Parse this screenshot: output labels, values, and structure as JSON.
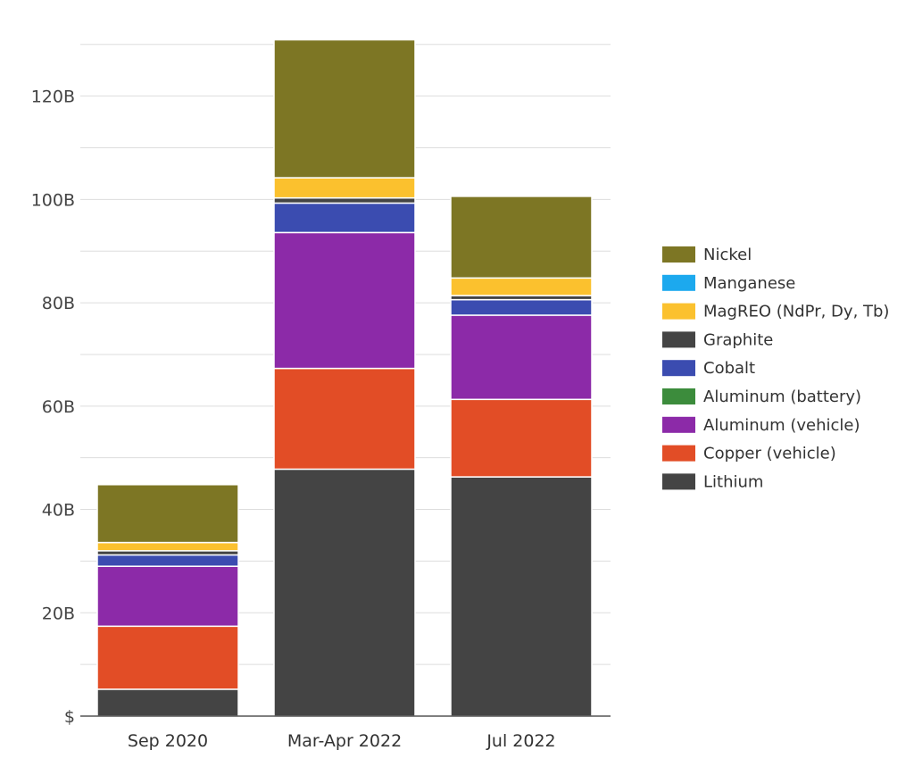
{
  "chart_data": {
    "type": "bar",
    "stacked": true,
    "title": "",
    "xlabel": "",
    "ylabel": "",
    "ylim": [
      0,
      131
    ],
    "y_ticks": [
      {
        "value": 0,
        "label": "$"
      },
      {
        "value": 20,
        "label": "20B"
      },
      {
        "value": 40,
        "label": "40B"
      },
      {
        "value": 60,
        "label": "60B"
      },
      {
        "value": 80,
        "label": "80B"
      },
      {
        "value": 100,
        "label": "100B"
      },
      {
        "value": 120,
        "label": "120B"
      }
    ],
    "minor_gridlines": [
      10,
      30,
      50,
      70,
      90,
      110,
      130
    ],
    "grid": true,
    "legend_position": "right",
    "categories": [
      "Sep 2020",
      "Mar-Apr 2022",
      "Jul 2022"
    ],
    "series": [
      {
        "name": "Lithium",
        "color": "#444444",
        "values": [
          5.2,
          47.8,
          46.3
        ]
      },
      {
        "name": "Copper (vehicle)",
        "color": "#e24d26",
        "values": [
          12.2,
          19.5,
          15.0
        ]
      },
      {
        "name": "Aluminum (vehicle)",
        "color": "#8c2aa8",
        "values": [
          11.6,
          26.3,
          16.3
        ]
      },
      {
        "name": "Aluminum (battery)",
        "color": "#3c8c3c",
        "values": [
          0,
          0,
          0
        ]
      },
      {
        "name": "Cobalt",
        "color": "#3b4cb0",
        "values": [
          2.2,
          5.7,
          3.0
        ]
      },
      {
        "name": "Graphite",
        "color": "#444444",
        "values": [
          0.8,
          1.0,
          0.8
        ]
      },
      {
        "name": "MagREO (NdPr, Dy, Tb)",
        "color": "#fbc12e",
        "values": [
          1.6,
          3.9,
          3.4
        ]
      },
      {
        "name": "Manganese",
        "color": "#1ca9ee",
        "values": [
          0,
          0,
          0
        ]
      },
      {
        "name": "Nickel",
        "color": "#7d7624",
        "values": [
          11.2,
          26.7,
          15.8
        ]
      }
    ],
    "legend_order": [
      "Nickel",
      "Manganese",
      "MagREO (NdPr, Dy, Tb)",
      "Graphite",
      "Cobalt",
      "Aluminum (battery)",
      "Aluminum (vehicle)",
      "Copper (vehicle)",
      "Lithium"
    ]
  }
}
